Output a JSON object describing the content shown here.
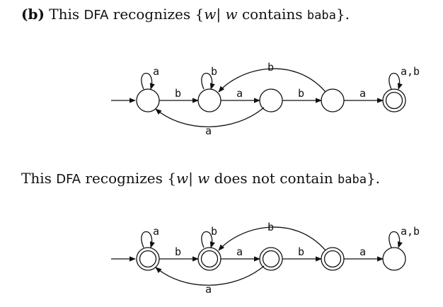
{
  "caption1": {
    "label": "(b)",
    "pre": "This",
    "dfa": "DFA",
    "mid": "recognizes",
    "set_open": "{",
    "var": "w",
    "bar": "|",
    "var2": "w",
    "phrase": "contains",
    "word": "baba",
    "set_close": "}."
  },
  "caption2": {
    "pre": "This",
    "dfa": "DFA",
    "mid": "recognizes",
    "set_open": "{",
    "var": "w",
    "bar": "|",
    "var2": "w",
    "phrase": "does not contain",
    "word": "baba",
    "set_close": "}."
  },
  "labels": {
    "a": "a",
    "b": "b",
    "ab": "a,b"
  },
  "diagram1": {
    "accept": [
      false,
      false,
      false,
      false,
      true
    ]
  },
  "diagram2": {
    "accept": [
      true,
      true,
      true,
      true,
      false
    ]
  }
}
